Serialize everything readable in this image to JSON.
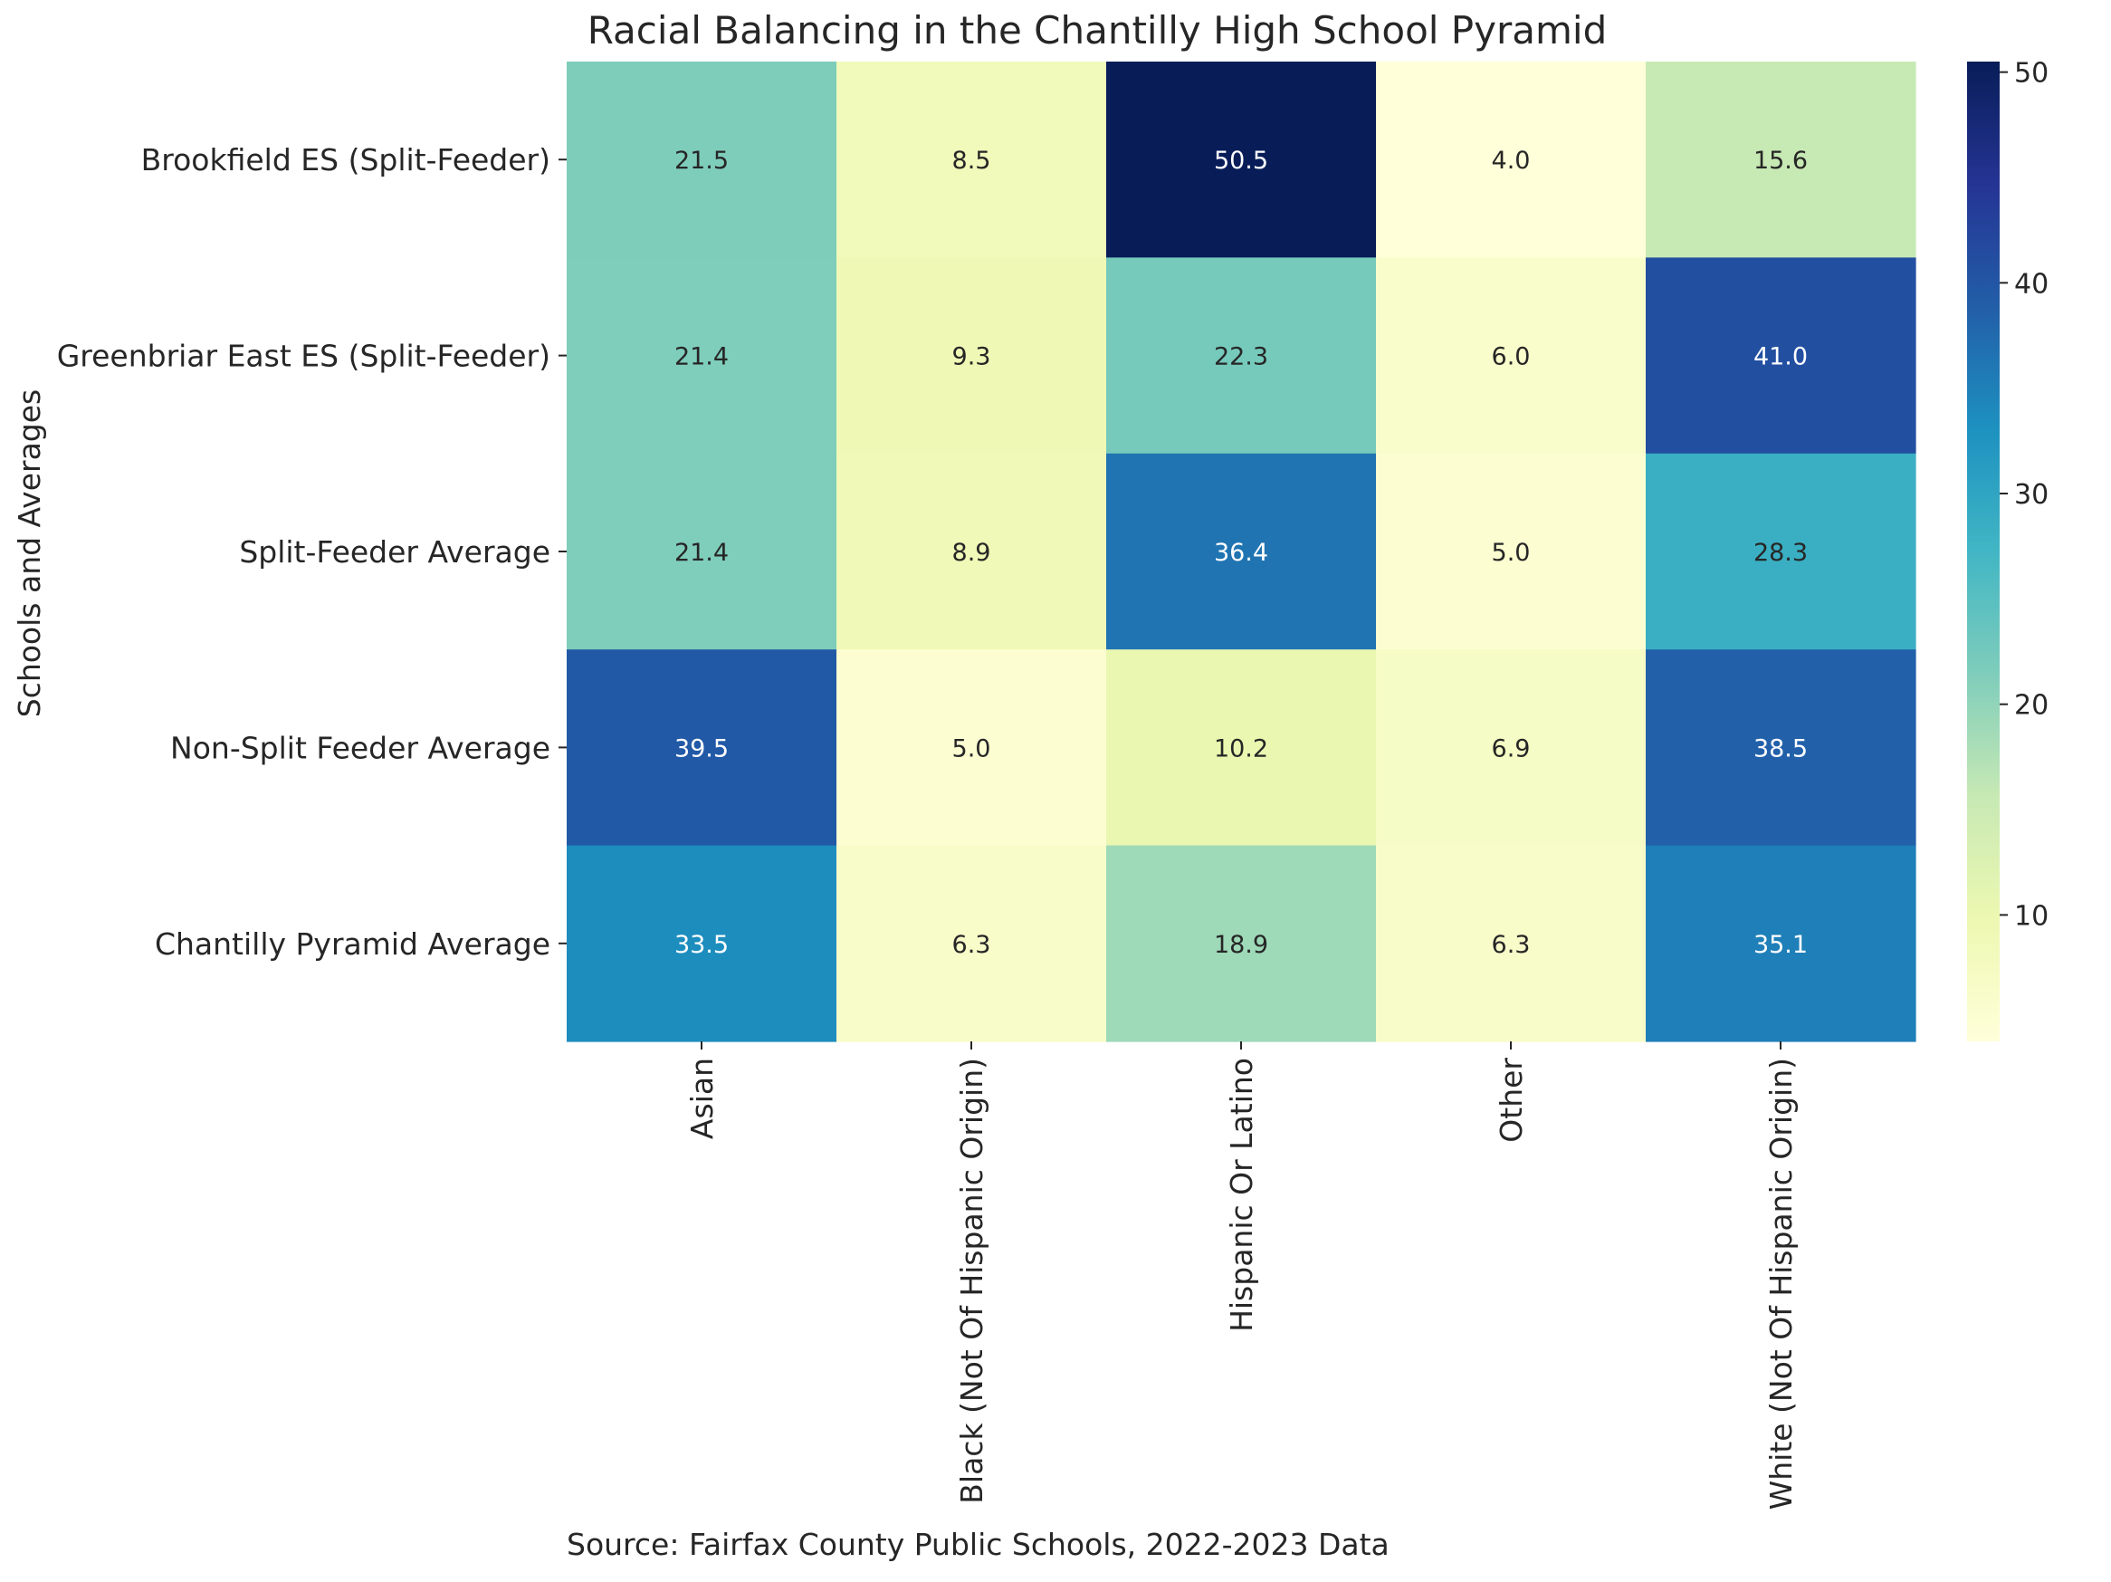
{
  "chart_data": {
    "type": "heatmap",
    "title": "Racial Balancing in the Chantilly High School Pyramid",
    "ylabel": "Schools and Averages",
    "xlabel": "",
    "rows": [
      "Brookfield ES (Split-Feeder)",
      "Greenbriar East ES (Split-Feeder)",
      "Split-Feeder Average",
      "Non-Split Feeder Average",
      "Chantilly Pyramid Average"
    ],
    "columns": [
      "Asian",
      "Black (Not Of Hispanic Origin)",
      "Hispanic Or Latino",
      "Other",
      "White (Not Of Hispanic Origin)"
    ],
    "values": [
      [
        21.5,
        8.5,
        50.5,
        4.0,
        15.6
      ],
      [
        21.4,
        9.3,
        22.3,
        6.0,
        41.0
      ],
      [
        21.4,
        8.9,
        36.4,
        5.0,
        28.3
      ],
      [
        39.5,
        5.0,
        10.2,
        6.9,
        38.5
      ],
      [
        33.5,
        6.3,
        18.9,
        6.3,
        35.1
      ]
    ],
    "value_format": "0.1f",
    "colormap": "YlGnBu",
    "colorbar": {
      "vmin": 4.0,
      "vmax": 50.5,
      "ticks": [
        10,
        20,
        30,
        40,
        50
      ]
    }
  },
  "source_note": "Source: Fairfax County Public Schools, 2022-2023 Data",
  "colors": {
    "ylgnbu": [
      "#ffffd9",
      "#edf8b1",
      "#c7e9b4",
      "#7fcdbb",
      "#41b6c4",
      "#1d91c0",
      "#225ea8",
      "#253494",
      "#081d58"
    ],
    "text_dark": "#262626",
    "text_light": "#ffffff"
  }
}
